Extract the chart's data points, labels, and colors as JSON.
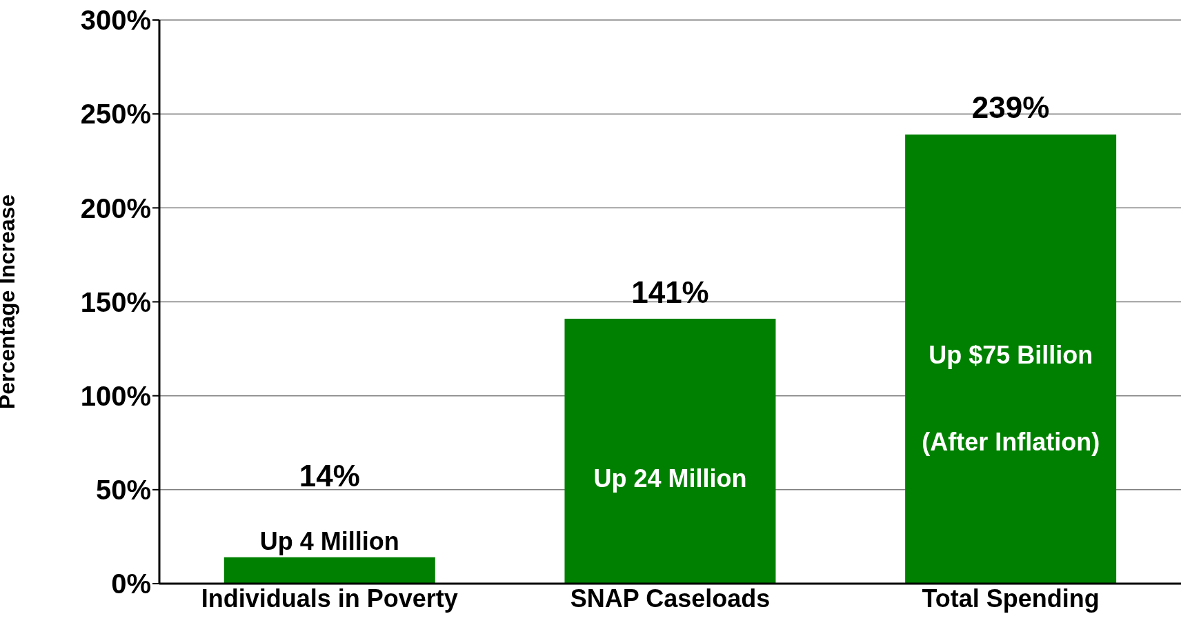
{
  "chart_data": {
    "type": "bar",
    "ylabel": "Percentage Increase",
    "categories": [
      "Individuals in Poverty",
      "SNAP Caseloads",
      "Total Spending"
    ],
    "values": [
      14,
      141,
      239
    ],
    "color": "#008000",
    "value_labels": [
      "14%",
      "141%",
      "239%"
    ],
    "ylim": [
      0,
      300
    ],
    "yticks": [
      {
        "value": 0,
        "label": "0%"
      },
      {
        "value": 50,
        "label": "50%"
      },
      {
        "value": 100,
        "label": "100%"
      },
      {
        "value": 150,
        "label": "150%"
      },
      {
        "value": 200,
        "label": "200%"
      },
      {
        "value": 250,
        "label": "250%"
      },
      {
        "value": 300,
        "label": "300%"
      }
    ],
    "grid": "y",
    "annotations": [
      "Up 4 Million",
      "Up 24 Million",
      "Up $75 Billion",
      "(After Inflation)"
    ]
  }
}
